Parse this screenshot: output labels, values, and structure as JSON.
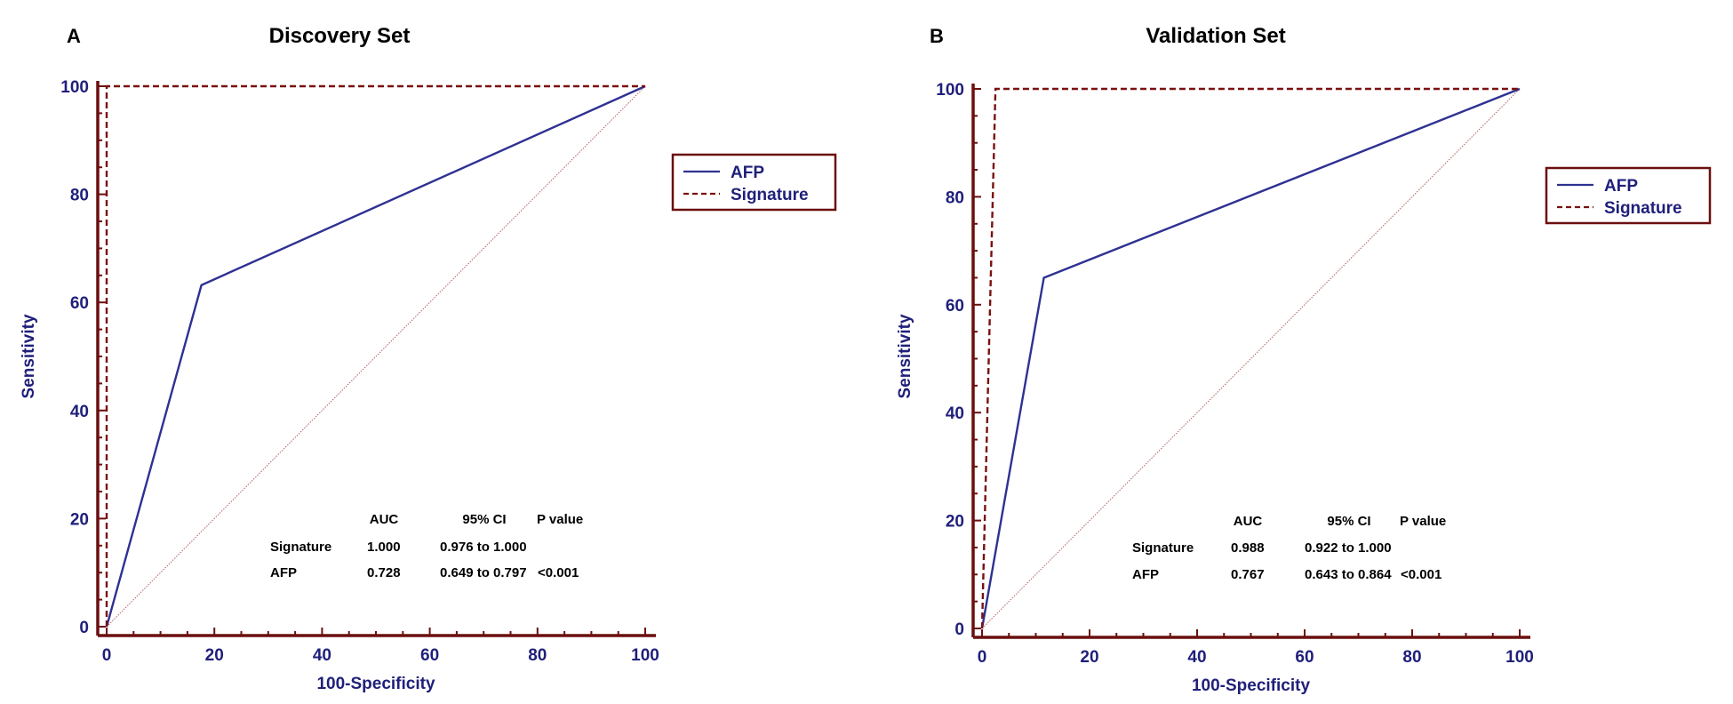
{
  "colors": {
    "axis": "#6b0f0f",
    "text": "#1f1f7a",
    "afp": "#2e3192",
    "signature": "#7a1010",
    "reference": "#b06060"
  },
  "chart_data": [
    {
      "type": "line",
      "panel_letter": "A",
      "title": "Discovery Set",
      "xlabel": "100-Specificity",
      "ylabel": "Sensitivity",
      "xlim": [
        0,
        100
      ],
      "ylim": [
        0,
        100
      ],
      "xticks": [
        "0",
        "20",
        "40",
        "60",
        "80",
        "100"
      ],
      "yticks": [
        "0",
        "20",
        "40",
        "60",
        "80",
        "100"
      ],
      "legend_position": "right",
      "series": [
        {
          "name": "AFP",
          "style": "solid",
          "x": [
            0,
            17.6,
            100
          ],
          "y": [
            0,
            63.2,
            100
          ]
        },
        {
          "name": "Signature",
          "style": "dashed",
          "x": [
            0,
            0,
            100
          ],
          "y": [
            0,
            100,
            100
          ]
        }
      ],
      "reference_line": {
        "x": [
          0,
          100
        ],
        "y": [
          0,
          100
        ]
      },
      "stats_table": {
        "headers": [
          "AUC",
          "95% CI",
          "P value"
        ],
        "rows": [
          {
            "label": "Signature",
            "auc": "1.000",
            "ci": "0.976 to 1.000",
            "p": ""
          },
          {
            "label": "AFP",
            "auc": "0.728",
            "ci": "0.649 to 0.797",
            "p": "<0.001"
          }
        ]
      }
    },
    {
      "type": "line",
      "panel_letter": "B",
      "title": "Validation Set",
      "xlabel": "100-Specificity",
      "ylabel": "Sensitivity",
      "xlim": [
        0,
        100
      ],
      "ylim": [
        0,
        100
      ],
      "xticks": [
        "0",
        "20",
        "40",
        "60",
        "80",
        "100"
      ],
      "yticks": [
        "0",
        "20",
        "40",
        "60",
        "80",
        "100"
      ],
      "legend_position": "right",
      "series": [
        {
          "name": "AFP",
          "style": "solid",
          "x": [
            0,
            11.5,
            100
          ],
          "y": [
            0,
            65,
            100
          ]
        },
        {
          "name": "Signature",
          "style": "dashed",
          "x": [
            0,
            2.5,
            100
          ],
          "y": [
            0,
            100,
            100
          ]
        }
      ],
      "reference_line": {
        "x": [
          0,
          100
        ],
        "y": [
          0,
          100
        ]
      },
      "stats_table": {
        "headers": [
          "AUC",
          "95% CI",
          "P value"
        ],
        "rows": [
          {
            "label": "Signature",
            "auc": "0.988",
            "ci": "0.922 to 1.000",
            "p": ""
          },
          {
            "label": "AFP",
            "auc": "0.767",
            "ci": "0.643 to 0.864",
            "p": "<0.001"
          }
        ]
      }
    }
  ]
}
